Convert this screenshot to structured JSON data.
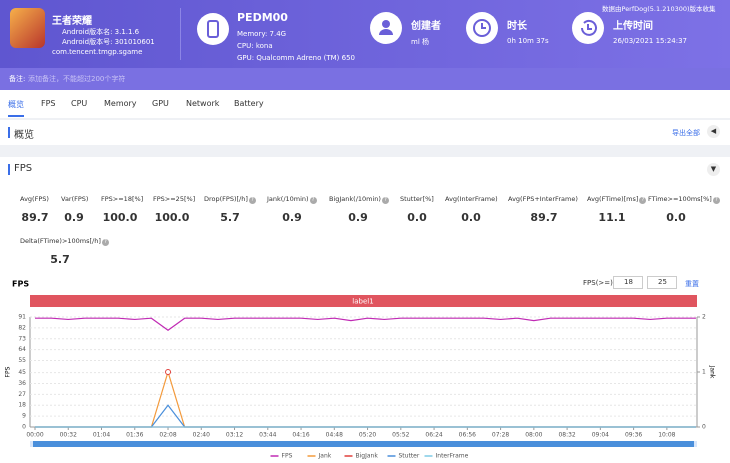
{
  "header": {
    "app": {
      "name": "王者荣耀",
      "version_name": "Android版本名: 3.1.1.6",
      "version_code": "Android版本号: 301010601",
      "package": "com.tencent.tmgp.sgame"
    },
    "device": {
      "name": "PEDM00",
      "memory": "Memory: 7.4G",
      "cpu": "CPU: kona",
      "gpu": "GPU: Qualcomm Adreno (TM) 650"
    },
    "creator": {
      "label": "创建者",
      "value": "ml 杨"
    },
    "duration": {
      "label": "时长",
      "value": "0h 10m 37s"
    },
    "upload": {
      "label": "上传时间",
      "value": "26/03/2021 15:24:37"
    },
    "collector": "数据由PerfDog(5.1.210300)版本收集"
  },
  "note": {
    "label": "备注:",
    "placeholder": "添加备注，不能超过200个字符"
  },
  "tabs": [
    "概览",
    "FPS",
    "CPU",
    "Memory",
    "GPU",
    "Network",
    "Battery"
  ],
  "overview": {
    "title": "概览",
    "export": "导出全部"
  },
  "fps_section": {
    "title": "FPS",
    "stats": [
      {
        "label": "Avg(FPS)",
        "value": "89.7"
      },
      {
        "label": "Var(FPS)",
        "value": "0.9"
      },
      {
        "label": "FPS>=18[%]",
        "value": "100.0"
      },
      {
        "label": "FPS>=25[%]",
        "value": "100.0"
      },
      {
        "label": "Drop(FPS)[/h]",
        "value": "5.7"
      },
      {
        "label": "Jank(/10min)",
        "value": "0.9"
      },
      {
        "label": "BigJank(/10min)",
        "value": "0.9"
      },
      {
        "label": "Stutter[%]",
        "value": "0.0"
      },
      {
        "label": "Avg(InterFrame)",
        "value": "0.0"
      },
      {
        "label": "Avg(FPS+InterFrame)",
        "value": "89.7"
      },
      {
        "label": "Avg(FTime)[ms]",
        "value": "11.1"
      },
      {
        "label": "FTime>=100ms[%]",
        "value": "0.0"
      },
      {
        "label": "Delta(FTime)>100ms[/h]",
        "value": "5.7"
      }
    ],
    "controls": {
      "label": "FPS(>=)",
      "low": "18",
      "high": "25",
      "reset": "重置"
    }
  },
  "chart_data": {
    "type": "line",
    "title": "FPS",
    "band_label": "label1",
    "ylabel": "FPS",
    "y2label": "Jank",
    "x": [
      0,
      16,
      32,
      48,
      64,
      80,
      96,
      112,
      128,
      144,
      160,
      176,
      192,
      208,
      224,
      240,
      256,
      272,
      288,
      304,
      320,
      336,
      352,
      368,
      384,
      400,
      416,
      432,
      448,
      464,
      480,
      496,
      512,
      528,
      544,
      560,
      576,
      592,
      608,
      624,
      636
    ],
    "xlim": [
      0,
      637
    ],
    "xticks": [
      {
        "value": 0,
        "label": "00:00"
      },
      {
        "value": 32,
        "label": "00:32"
      },
      {
        "value": 64,
        "label": "01:04"
      },
      {
        "value": 96,
        "label": "01:36"
      },
      {
        "value": 128,
        "label": "02:08"
      },
      {
        "value": 160,
        "label": "02:40"
      },
      {
        "value": 192,
        "label": "03:12"
      },
      {
        "value": 224,
        "label": "03:44"
      },
      {
        "value": 256,
        "label": "04:16"
      },
      {
        "value": 288,
        "label": "04:48"
      },
      {
        "value": 320,
        "label": "05:20"
      },
      {
        "value": 352,
        "label": "05:52"
      },
      {
        "value": 384,
        "label": "06:24"
      },
      {
        "value": 416,
        "label": "06:56"
      },
      {
        "value": 448,
        "label": "07:28"
      },
      {
        "value": 480,
        "label": "08:00"
      },
      {
        "value": 512,
        "label": "08:32"
      },
      {
        "value": 544,
        "label": "09:04"
      },
      {
        "value": 576,
        "label": "09:36"
      },
      {
        "value": 608,
        "label": "10:08"
      }
    ],
    "ylim": [
      0,
      91
    ],
    "yticks": [
      0,
      9,
      18,
      27,
      36,
      45,
      55,
      64,
      73,
      82,
      91
    ],
    "y2lim": [
      0,
      2
    ],
    "y2ticks": [
      0,
      1,
      2
    ],
    "grid": true,
    "series": [
      {
        "name": "FPS",
        "color": "#c02ab4",
        "values": [
          90,
          90,
          89,
          90,
          90,
          90,
          89,
          90,
          80,
          90,
          90,
          89,
          90,
          90,
          90,
          90,
          90,
          89,
          90,
          88,
          90,
          89,
          90,
          90,
          90,
          90,
          90,
          90,
          89,
          90,
          88,
          90,
          90,
          90,
          90,
          90,
          90,
          89,
          90,
          90,
          90
        ]
      },
      {
        "name": "Jank",
        "color": "#f39a3c",
        "axis": "y2",
        "values": [
          0,
          0,
          0,
          0,
          0,
          0,
          0,
          0,
          1,
          0,
          0,
          0,
          0,
          0,
          0,
          0,
          0,
          0,
          0,
          0,
          0,
          0,
          0,
          0,
          0,
          0,
          0,
          0,
          0,
          0,
          0,
          0,
          0,
          0,
          0,
          0,
          0,
          0,
          0,
          0,
          0
        ]
      },
      {
        "name": "BigJank",
        "color": "#e0403c",
        "axis": "y2",
        "values": [
          0,
          0,
          0,
          0,
          0,
          0,
          0,
          0,
          0,
          0,
          0,
          0,
          0,
          0,
          0,
          0,
          0,
          0,
          0,
          0,
          0,
          0,
          0,
          0,
          0,
          0,
          0,
          0,
          0,
          0,
          0,
          0,
          0,
          0,
          0,
          0,
          0,
          0,
          0,
          0,
          0
        ]
      },
      {
        "name": "Stutter",
        "color": "#4a8fdb",
        "values": [
          0,
          0,
          0,
          0,
          0,
          0,
          0,
          0,
          18,
          0,
          0,
          0,
          0,
          0,
          0,
          0,
          0,
          0,
          0,
          0,
          0,
          0,
          0,
          0,
          0,
          0,
          0,
          0,
          0,
          0,
          0,
          0,
          0,
          0,
          0,
          0,
          0,
          0,
          0,
          0,
          0
        ]
      },
      {
        "name": "InterFrame",
        "color": "#7fcbe6",
        "values": [
          0,
          0,
          0,
          0,
          0,
          0,
          0,
          0,
          0,
          0,
          0,
          0,
          0,
          0,
          0,
          0,
          0,
          0,
          0,
          0,
          0,
          0,
          0,
          0,
          0,
          0,
          0,
          0,
          0,
          0,
          0,
          0,
          0,
          0,
          0,
          0,
          0,
          0,
          0,
          0,
          0
        ]
      }
    ]
  }
}
